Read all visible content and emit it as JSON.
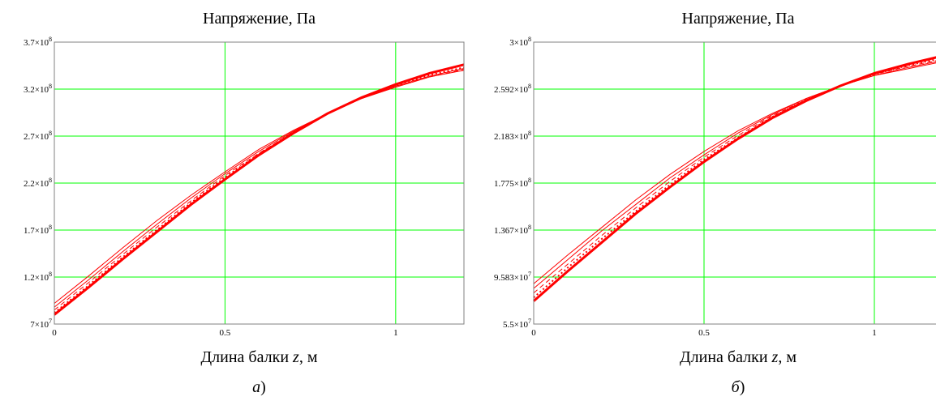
{
  "chart_data": [
    {
      "type": "line",
      "title": "Напряжение, Па",
      "xlabel_text": "Длина балки ",
      "xlabel_var": "z",
      "xlabel_unit": ", м",
      "caption_letter": "а",
      "caption_paren": ")",
      "xlim": [
        0,
        1.2
      ],
      "ylim": [
        70000000,
        370000000
      ],
      "grid": true,
      "x_ticks": [
        {
          "value": 0,
          "label": "0"
        },
        {
          "value": 0.5,
          "label": "0.5"
        },
        {
          "value": 1,
          "label": "1"
        }
      ],
      "y_ticks": [
        {
          "value": 70000000,
          "mant": "7",
          "exp": "7"
        },
        {
          "value": 120000000,
          "mant": "1.2",
          "exp": "8"
        },
        {
          "value": 170000000,
          "mant": "1.7",
          "exp": "8"
        },
        {
          "value": 220000000,
          "mant": "2.2",
          "exp": "8"
        },
        {
          "value": 270000000,
          "mant": "2.7",
          "exp": "8"
        },
        {
          "value": 320000000,
          "mant": "3.2",
          "exp": "8"
        },
        {
          "value": 370000000,
          "mant": "3.7",
          "exp": "8"
        }
      ],
      "x": [
        0,
        0.1,
        0.2,
        0.3,
        0.4,
        0.5,
        0.6,
        0.7,
        0.8,
        0.9,
        1.0,
        1.1,
        1.2
      ],
      "series": [
        {
          "style": "solid",
          "width": 3,
          "values": [
            80000000,
            109000000,
            139000000,
            168000000,
            197000000,
            224000000,
            250000000,
            273000000,
            294000000,
            311000000,
            325000000,
            337000000,
            346000000
          ]
        },
        {
          "style": "dotted",
          "width": 2,
          "values": [
            82000000,
            111000000,
            141000000,
            170000000,
            199000000,
            226000000,
            251000000,
            274000000,
            294000000,
            311000000,
            324000000,
            335000000,
            343000000
          ]
        },
        {
          "style": "dashed",
          "width": 1,
          "values": [
            85000000,
            114000000,
            144000000,
            173000000,
            201000000,
            228000000,
            252000000,
            274000000,
            294000000,
            310000000,
            323000000,
            333000000,
            341000000
          ]
        },
        {
          "style": "solid",
          "width": 1,
          "values": [
            88000000,
            117000000,
            147000000,
            176000000,
            204000000,
            230000000,
            254000000,
            275000000,
            294000000,
            310000000,
            323000000,
            334000000,
            342000000
          ]
        },
        {
          "style": "solid",
          "width": 1,
          "values": [
            92000000,
            121000000,
            151000000,
            180000000,
            207000000,
            232000000,
            256000000,
            276000000,
            294000000,
            310000000,
            322000000,
            333000000,
            340000000
          ]
        }
      ],
      "colors": {
        "line": "#ff0000",
        "grid": "#00ff00",
        "axis": "#808080"
      }
    },
    {
      "type": "line",
      "title": "Напряжение, Па",
      "xlabel_text": "Длина балки ",
      "xlabel_var": "z",
      "xlabel_unit": ", м",
      "caption_letter": "б",
      "caption_paren": ")",
      "xlim": [
        0,
        1.2
      ],
      "ylim": [
        55000000,
        300000000
      ],
      "grid": true,
      "x_ticks": [
        {
          "value": 0,
          "label": "0"
        },
        {
          "value": 0.5,
          "label": "0.5"
        },
        {
          "value": 1,
          "label": "1"
        }
      ],
      "y_ticks": [
        {
          "value": 55000000,
          "mant": "5.5",
          "exp": "7"
        },
        {
          "value": 95830000,
          "mant": "9.583",
          "exp": "7"
        },
        {
          "value": 136700000,
          "mant": "1.367",
          "exp": "8"
        },
        {
          "value": 177500000,
          "mant": "1.775",
          "exp": "8"
        },
        {
          "value": 218300000,
          "mant": "2.183",
          "exp": "8"
        },
        {
          "value": 259200000,
          "mant": "2.592",
          "exp": "8"
        },
        {
          "value": 300000000,
          "mant": "3",
          "exp": "8"
        }
      ],
      "x": [
        0,
        0.1,
        0.2,
        0.3,
        0.4,
        0.5,
        0.6,
        0.7,
        0.8,
        0.9,
        1.0,
        1.1,
        1.2
      ],
      "series": [
        {
          "style": "solid",
          "width": 3,
          "values": [
            75000000,
            101000000,
            126000000,
            151000000,
            174000000,
            196000000,
            216000000,
            234000000,
            249000000,
            262000000,
            273000000,
            281000000,
            288000000
          ]
        },
        {
          "style": "dotted",
          "width": 2,
          "values": [
            78000000,
            104000000,
            129000000,
            153000000,
            176000000,
            198000000,
            217000000,
            235000000,
            250000000,
            262000000,
            272000000,
            280000000,
            286000000
          ]
        },
        {
          "style": "dashed",
          "width": 1,
          "values": [
            82000000,
            107000000,
            132000000,
            156000000,
            179000000,
            200000000,
            219000000,
            236000000,
            250000000,
            262000000,
            272000000,
            279000000,
            285000000
          ]
        },
        {
          "style": "solid",
          "width": 1,
          "values": [
            86000000,
            111000000,
            136000000,
            159000000,
            182000000,
            202000000,
            221000000,
            237000000,
            251000000,
            262000000,
            271000000,
            278000000,
            284000000
          ]
        },
        {
          "style": "solid",
          "width": 1,
          "values": [
            90000000,
            115000000,
            139000000,
            163000000,
            185000000,
            205000000,
            223000000,
            238000000,
            251000000,
            262000000,
            271000000,
            277000000,
            283000000
          ]
        }
      ],
      "colors": {
        "line": "#ff0000",
        "grid": "#00ff00",
        "axis": "#808080"
      }
    }
  ]
}
